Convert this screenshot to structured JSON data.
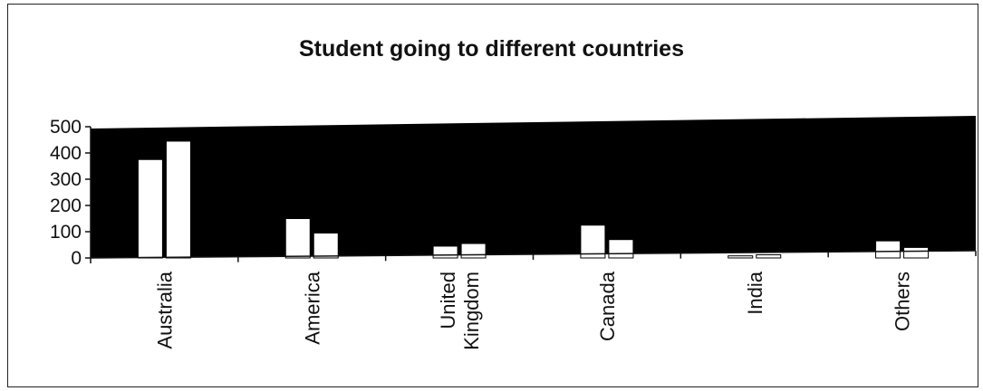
{
  "chart_data": {
    "type": "bar",
    "title": "Student going to different countries",
    "xlabel": "",
    "ylabel": "",
    "categories": [
      "Australia",
      "America",
      "United Kingdom",
      "Canada",
      "India",
      "Others"
    ],
    "category_lines": [
      [
        "Australia"
      ],
      [
        "America"
      ],
      [
        "United",
        "Kingdom"
      ],
      [
        "Canada"
      ],
      [
        "India"
      ],
      [
        "Others"
      ]
    ],
    "series": [
      {
        "values": [
          375,
          150,
          45,
          125,
          8,
          65
        ]
      },
      {
        "values": [
          445,
          95,
          55,
          70,
          12,
          40
        ]
      }
    ],
    "y_ticks": [
      "0",
      "100",
      "200",
      "300",
      "400",
      "500"
    ],
    "ylim": [
      0,
      500
    ],
    "grid": false,
    "legend": "none",
    "colors": {
      "plot_background": "#000000",
      "bar_fill": "#ffffff",
      "bar_stroke": "#000000"
    }
  }
}
